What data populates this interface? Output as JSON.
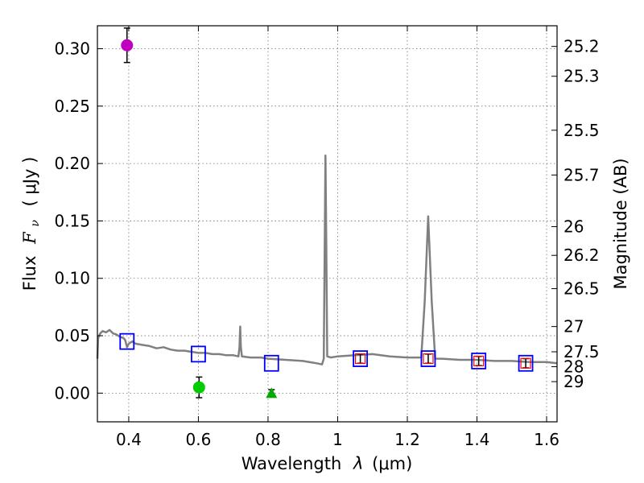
{
  "chart_data": {
    "type": "scatter",
    "title": "",
    "xlabel_text": "Wavelength",
    "xlabel_symbol": "λ",
    "xlabel_unit": "(μm)",
    "ylabel_text": "Flux",
    "ylabel_symbol": "F",
    "ylabel_subscript": "ν",
    "ylabel_unit": "( μJy )",
    "y2label": "Magnitude (AB)",
    "xlim": [
      0.31,
      1.63
    ],
    "ylim": [
      -0.025,
      0.32
    ],
    "grid": true,
    "x_ticks": [
      {
        "value": 0.4,
        "label": "0.4"
      },
      {
        "value": 0.6,
        "label": "0.6"
      },
      {
        "value": 0.8,
        "label": "0.8"
      },
      {
        "value": 1.0,
        "label": "1"
      },
      {
        "value": 1.2,
        "label": "1.2"
      },
      {
        "value": 1.4,
        "label": "1.4"
      },
      {
        "value": 1.6,
        "label": "1.6"
      }
    ],
    "y_ticks": [
      {
        "value": 0.0,
        "label": "0.00"
      },
      {
        "value": 0.05,
        "label": "0.05"
      },
      {
        "value": 0.1,
        "label": "0.10"
      },
      {
        "value": 0.15,
        "label": "0.15"
      },
      {
        "value": 0.2,
        "label": "0.20"
      },
      {
        "value": 0.25,
        "label": "0.25"
      },
      {
        "value": 0.3,
        "label": "0.30"
      }
    ],
    "magnitude_ticks": [
      {
        "flux": 0.302,
        "label": "25.2"
      },
      {
        "flux": 0.276,
        "label": "25.3"
      },
      {
        "flux": 0.229,
        "label": "25.5"
      },
      {
        "flux": 0.19,
        "label": "25.7"
      },
      {
        "flux": 0.145,
        "label": "26"
      },
      {
        "flux": 0.12,
        "label": "26.2"
      },
      {
        "flux": 0.091,
        "label": "26.5"
      },
      {
        "flux": 0.058,
        "label": "27"
      },
      {
        "flux": 0.036,
        "label": "27.5"
      },
      {
        "flux": 0.023,
        "label": "28"
      },
      {
        "flux": 0.01,
        "label": "29"
      }
    ],
    "series": [
      {
        "name": "model spectrum",
        "kind": "line",
        "color": "#808080",
        "points": [
          [
            0.31,
            0.03
          ],
          [
            0.312,
            0.048
          ],
          [
            0.318,
            0.052
          ],
          [
            0.325,
            0.054
          ],
          [
            0.335,
            0.053
          ],
          [
            0.345,
            0.055
          ],
          [
            0.355,
            0.052
          ],
          [
            0.365,
            0.051
          ],
          [
            0.375,
            0.049
          ],
          [
            0.385,
            0.048
          ],
          [
            0.39,
            0.046
          ],
          [
            0.395,
            0.04
          ],
          [
            0.4,
            0.043
          ],
          [
            0.41,
            0.045
          ],
          [
            0.42,
            0.043
          ],
          [
            0.44,
            0.042
          ],
          [
            0.46,
            0.041
          ],
          [
            0.48,
            0.039
          ],
          [
            0.5,
            0.04
          ],
          [
            0.52,
            0.038
          ],
          [
            0.54,
            0.037
          ],
          [
            0.56,
            0.037
          ],
          [
            0.58,
            0.036
          ],
          [
            0.6,
            0.035
          ],
          [
            0.62,
            0.035
          ],
          [
            0.64,
            0.034
          ],
          [
            0.66,
            0.034
          ],
          [
            0.68,
            0.033
          ],
          [
            0.7,
            0.033
          ],
          [
            0.715,
            0.032
          ],
          [
            0.718,
            0.04
          ],
          [
            0.72,
            0.058
          ],
          [
            0.722,
            0.04
          ],
          [
            0.725,
            0.032
          ],
          [
            0.75,
            0.031
          ],
          [
            0.78,
            0.031
          ],
          [
            0.8,
            0.03
          ],
          [
            0.85,
            0.029
          ],
          [
            0.9,
            0.028
          ],
          [
            0.94,
            0.026
          ],
          [
            0.955,
            0.025
          ],
          [
            0.96,
            0.03
          ],
          [
            0.963,
            0.14
          ],
          [
            0.965,
            0.207
          ],
          [
            0.967,
            0.14
          ],
          [
            0.97,
            0.032
          ],
          [
            0.98,
            0.031
          ],
          [
            1.0,
            0.032
          ],
          [
            1.05,
            0.033
          ],
          [
            1.1,
            0.034
          ],
          [
            1.15,
            0.032
          ],
          [
            1.2,
            0.031
          ],
          [
            1.24,
            0.031
          ],
          [
            1.25,
            0.08
          ],
          [
            1.26,
            0.154
          ],
          [
            1.27,
            0.08
          ],
          [
            1.28,
            0.03
          ],
          [
            1.3,
            0.03
          ],
          [
            1.35,
            0.029
          ],
          [
            1.4,
            0.029
          ],
          [
            1.45,
            0.028
          ],
          [
            1.5,
            0.028
          ],
          [
            1.55,
            0.027
          ],
          [
            1.6,
            0.027
          ],
          [
            1.63,
            0.026
          ]
        ]
      },
      {
        "name": "model photometry (blue squares)",
        "kind": "square",
        "stroke": "#0000ff",
        "points": [
          [
            0.395,
            0.045
          ],
          [
            0.6,
            0.034
          ],
          [
            0.81,
            0.026
          ],
          [
            1.065,
            0.03
          ],
          [
            1.26,
            0.03
          ],
          [
            1.405,
            0.028
          ],
          [
            1.54,
            0.026
          ]
        ]
      },
      {
        "name": "observed photometry (red squares)",
        "kind": "small-square",
        "stroke": "#ff0000",
        "points": [
          [
            1.065,
            0.03
          ],
          [
            1.26,
            0.03
          ],
          [
            1.405,
            0.028
          ],
          [
            1.54,
            0.026
          ]
        ],
        "yerr": [
          0.004,
          0.004,
          0.004,
          0.004
        ]
      },
      {
        "name": "magenta point",
        "kind": "circle",
        "fill": "#bf00bf",
        "points": [
          [
            0.395,
            0.303
          ]
        ],
        "yerr": [
          0.015
        ]
      },
      {
        "name": "green point",
        "kind": "circle",
        "fill": "#00cc00",
        "points": [
          [
            0.602,
            0.005
          ]
        ],
        "yerr": [
          0.009
        ]
      },
      {
        "name": "green triangle",
        "kind": "triangle",
        "fill": "#00aa00",
        "points": [
          [
            0.81,
            0.0
          ]
        ],
        "yerr": [
          0.003
        ]
      }
    ]
  }
}
